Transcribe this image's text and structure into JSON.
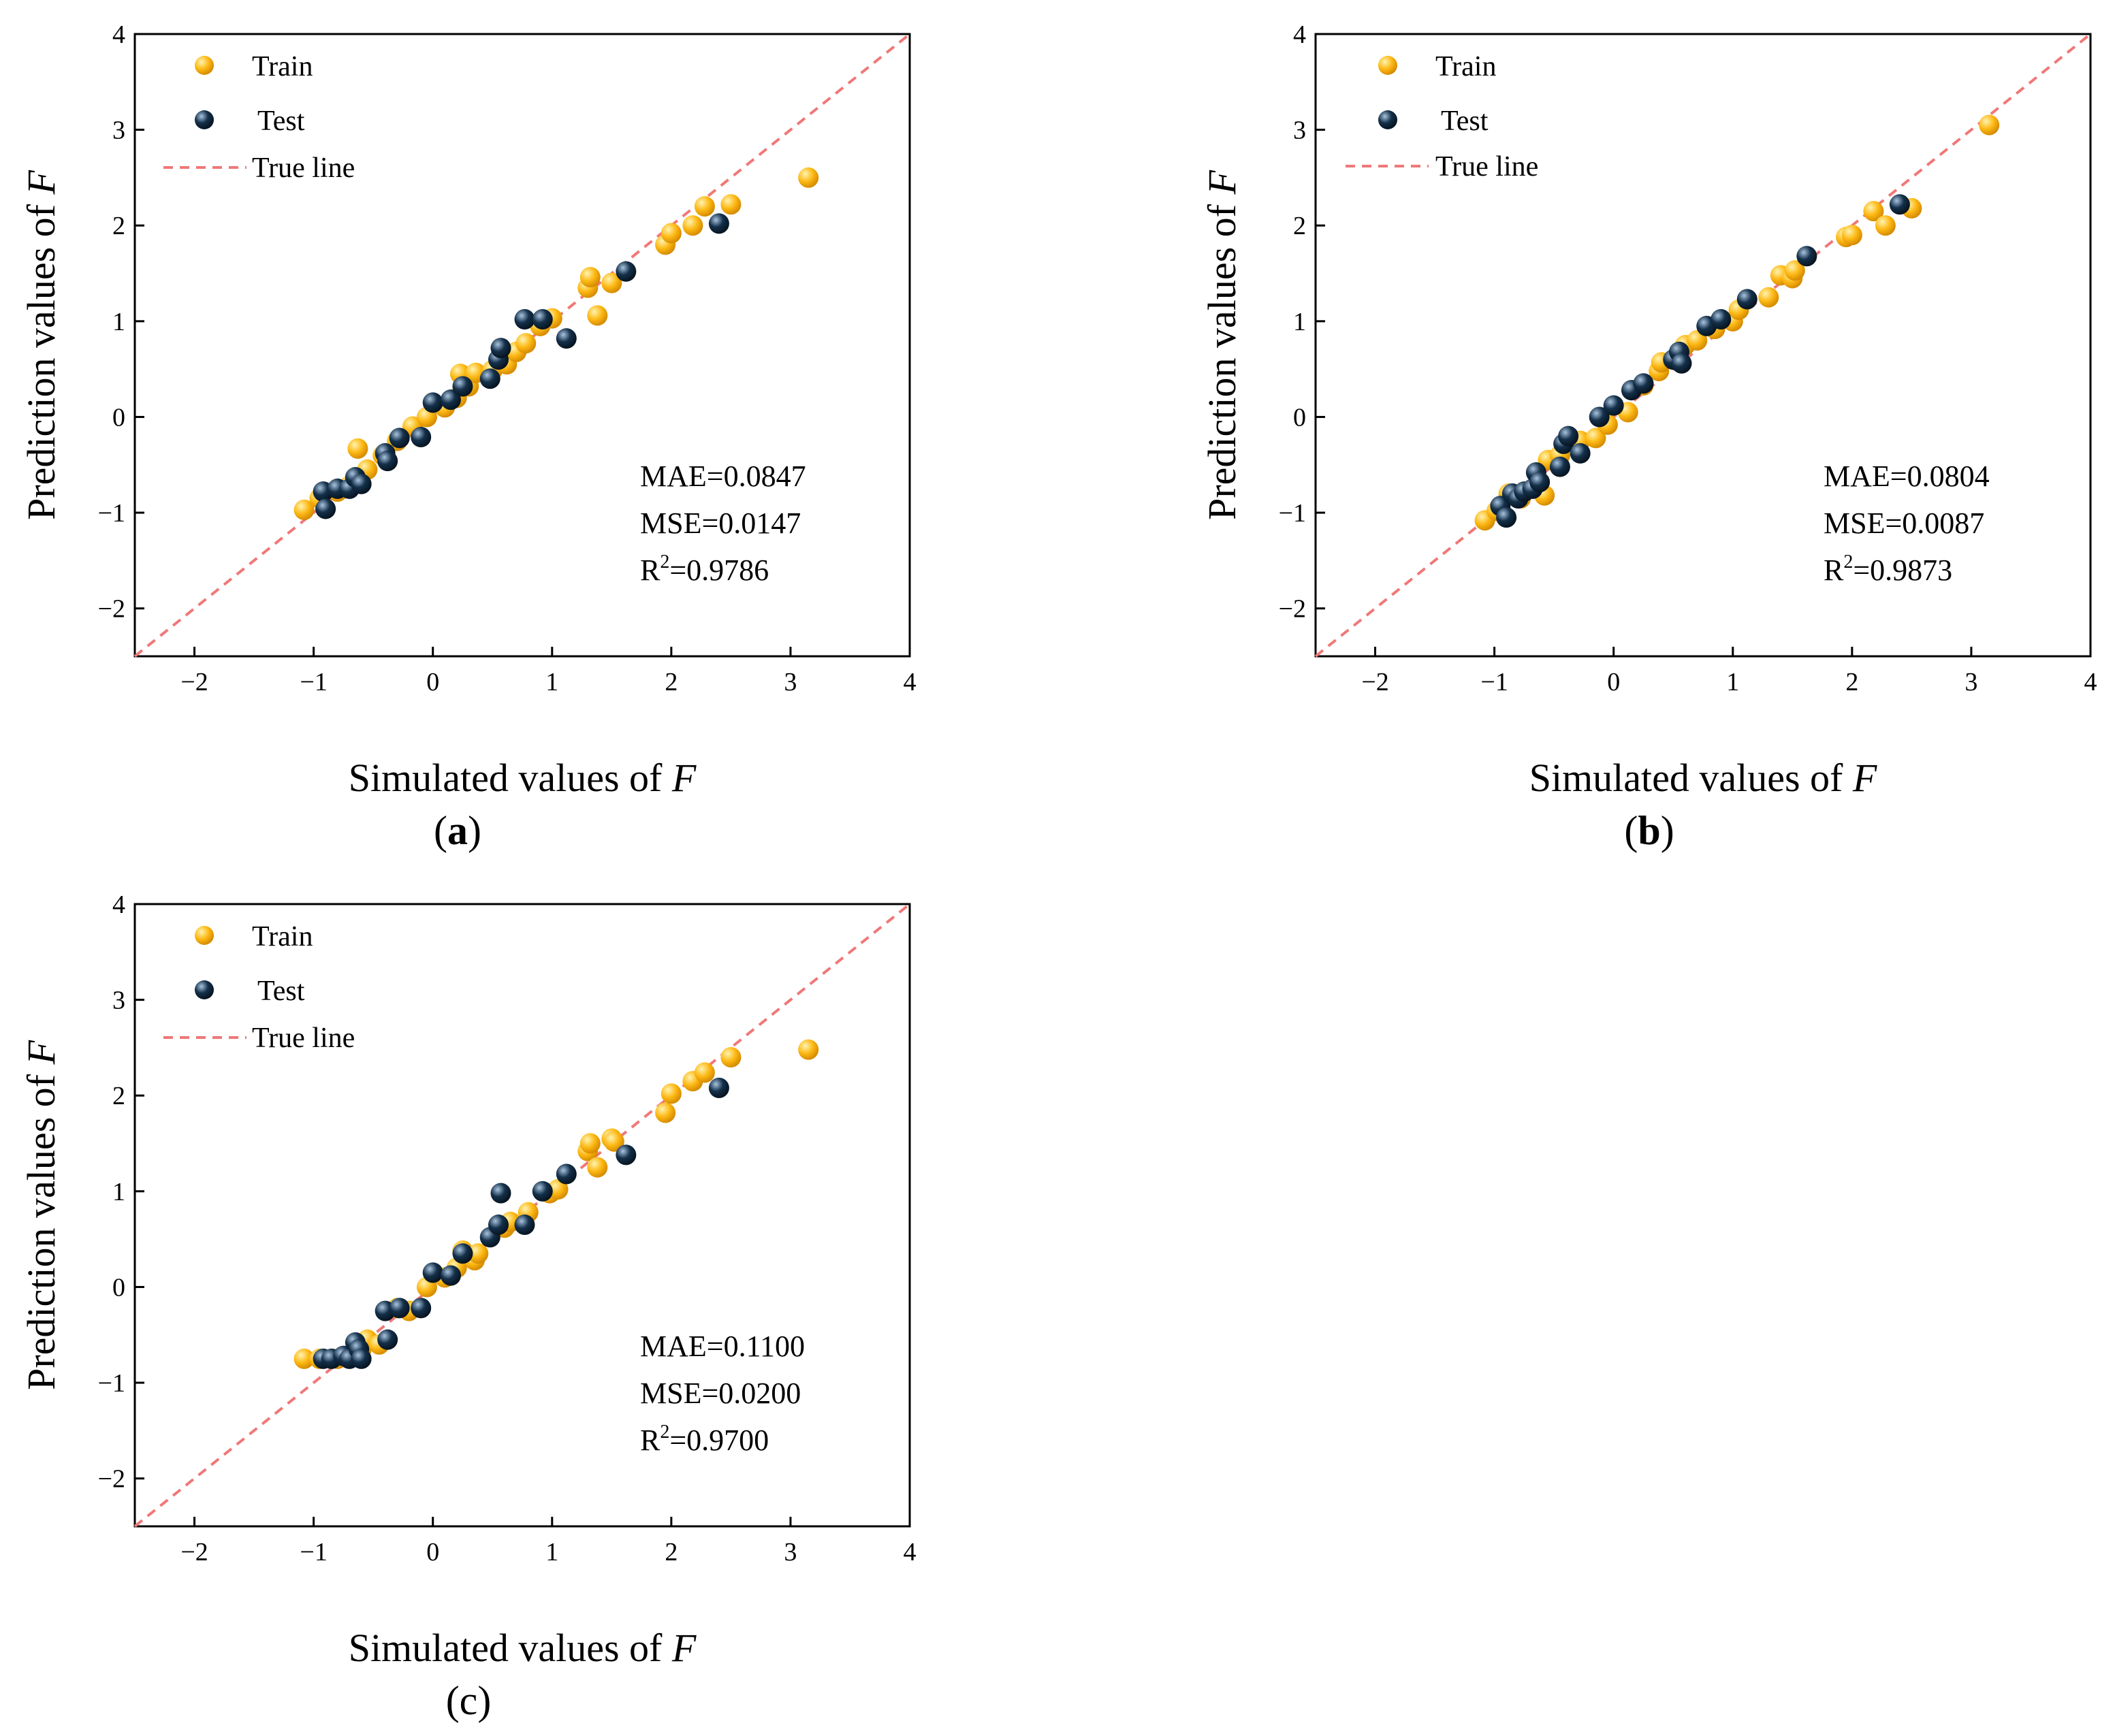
{
  "figure": {
    "colors": {
      "train": "#fdb813",
      "train_highlight": "#fff3b0",
      "test": "#14304a",
      "test_highlight": "#a8c4de",
      "true_line": "#f07878",
      "axis": "#000000"
    }
  },
  "chart_data": [
    {
      "type": "scatter",
      "panel_label": "(a)",
      "panel_letter": "a",
      "xlabel": "Simulated values of ",
      "ylabel": "Prediction values of ",
      "variable": "F",
      "xlim": [
        -2.5,
        4
      ],
      "ylim": [
        -2.5,
        4
      ],
      "xticks": [
        -2,
        -1,
        0,
        1,
        2,
        3,
        4
      ],
      "yticks": [
        -2,
        -1,
        0,
        1,
        2,
        3,
        4
      ],
      "xtick_labels": [
        "−2",
        "−1",
        "0",
        "1",
        "2",
        "3",
        "4"
      ],
      "ytick_labels": [
        "−2",
        "−1",
        "0",
        "1",
        "2",
        "3",
        "4"
      ],
      "legend": {
        "position": "top-left",
        "train": "Train",
        "test": "Test",
        "true_line": "True line"
      },
      "metrics": {
        "mae": "MAE=0.0847",
        "mse": "MSE=0.0147",
        "r2_prefix": "R",
        "r2_sup": "2",
        "r2_value": "=0.9786"
      },
      "series": [
        {
          "name": "Train",
          "points": [
            [
              -1.08,
              -0.97
            ],
            [
              -0.95,
              -0.85
            ],
            [
              -0.8,
              -0.78
            ],
            [
              -0.7,
              -0.72
            ],
            [
              -0.63,
              -0.33
            ],
            [
              -0.55,
              -0.55
            ],
            [
              -0.42,
              -0.4
            ],
            [
              -0.3,
              -0.25
            ],
            [
              -0.17,
              -0.1
            ],
            [
              -0.05,
              0.0
            ],
            [
              0.1,
              0.1
            ],
            [
              0.2,
              0.2
            ],
            [
              0.23,
              0.45
            ],
            [
              0.3,
              0.32
            ],
            [
              0.36,
              0.46
            ],
            [
              0.5,
              0.49
            ],
            [
              0.62,
              0.55
            ],
            [
              0.7,
              0.68
            ],
            [
              0.78,
              0.77
            ],
            [
              0.9,
              0.95
            ],
            [
              1.0,
              1.03
            ],
            [
              1.3,
              1.35
            ],
            [
              1.32,
              1.46
            ],
            [
              1.38,
              1.06
            ],
            [
              1.5,
              1.4
            ],
            [
              1.95,
              1.8
            ],
            [
              2.0,
              1.92
            ],
            [
              2.18,
              2.0
            ],
            [
              2.28,
              2.2
            ],
            [
              2.5,
              2.22
            ],
            [
              3.15,
              2.5
            ]
          ]
        },
        {
          "name": "Test",
          "points": [
            [
              -0.92,
              -0.78
            ],
            [
              -0.9,
              -0.96
            ],
            [
              -0.8,
              -0.75
            ],
            [
              -0.7,
              -0.75
            ],
            [
              -0.65,
              -0.63
            ],
            [
              -0.6,
              -0.7
            ],
            [
              -0.4,
              -0.38
            ],
            [
              -0.38,
              -0.46
            ],
            [
              -0.28,
              -0.22
            ],
            [
              -0.1,
              -0.21
            ],
            [
              0.0,
              0.15
            ],
            [
              0.15,
              0.18
            ],
            [
              0.25,
              0.32
            ],
            [
              0.48,
              0.4
            ],
            [
              0.55,
              0.6
            ],
            [
              0.57,
              0.72
            ],
            [
              0.77,
              1.02
            ],
            [
              0.92,
              1.02
            ],
            [
              1.12,
              0.82
            ],
            [
              1.62,
              1.52
            ],
            [
              2.4,
              2.02
            ]
          ]
        }
      ]
    },
    {
      "type": "scatter",
      "panel_label": "(b)",
      "panel_letter": "b",
      "xlabel": "Simulated values of ",
      "ylabel": "Prediction values of ",
      "variable": "F",
      "xlim": [
        -2.5,
        4
      ],
      "ylim": [
        -2.5,
        4
      ],
      "xticks": [
        -2,
        -1,
        0,
        1,
        2,
        3,
        4
      ],
      "yticks": [
        -2,
        -1,
        0,
        1,
        2,
        3,
        4
      ],
      "xtick_labels": [
        "−2",
        "−1",
        "0",
        "1",
        "2",
        "3",
        "4"
      ],
      "ytick_labels": [
        "−2",
        "−1",
        "0",
        "1",
        "2",
        "3",
        "4"
      ],
      "legend": {
        "position": "top-left",
        "train": "Train",
        "test": "Test",
        "true_line": "True line"
      },
      "metrics": {
        "mae": "MAE=0.0804",
        "mse": "MSE=0.0087",
        "r2_prefix": "R",
        "r2_sup": "2",
        "r2_value": "=0.9873"
      },
      "series": [
        {
          "name": "Train",
          "points": [
            [
              -1.08,
              -1.08
            ],
            [
              -0.98,
              -0.98
            ],
            [
              -0.88,
              -0.8
            ],
            [
              -0.78,
              -0.85
            ],
            [
              -0.65,
              -0.75
            ],
            [
              -0.58,
              -0.82
            ],
            [
              -0.55,
              -0.45
            ],
            [
              -0.45,
              -0.4
            ],
            [
              -0.28,
              -0.25
            ],
            [
              -0.15,
              -0.22
            ],
            [
              -0.05,
              -0.08
            ],
            [
              0.12,
              0.05
            ],
            [
              0.25,
              0.33
            ],
            [
              0.38,
              0.48
            ],
            [
              0.4,
              0.57
            ],
            [
              0.6,
              0.75
            ],
            [
              0.7,
              0.8
            ],
            [
              0.85,
              0.92
            ],
            [
              1.0,
              1.0
            ],
            [
              1.05,
              1.12
            ],
            [
              1.3,
              1.25
            ],
            [
              1.4,
              1.48
            ],
            [
              1.5,
              1.45
            ],
            [
              1.52,
              1.53
            ],
            [
              1.95,
              1.88
            ],
            [
              2.0,
              1.9
            ],
            [
              2.18,
              2.15
            ],
            [
              2.28,
              2.0
            ],
            [
              2.5,
              2.18
            ],
            [
              3.15,
              3.05
            ]
          ]
        },
        {
          "name": "Test",
          "points": [
            [
              -0.95,
              -0.93
            ],
            [
              -0.9,
              -1.05
            ],
            [
              -0.85,
              -0.8
            ],
            [
              -0.8,
              -0.85
            ],
            [
              -0.75,
              -0.78
            ],
            [
              -0.68,
              -0.75
            ],
            [
              -0.65,
              -0.58
            ],
            [
              -0.62,
              -0.68
            ],
            [
              -0.45,
              -0.52
            ],
            [
              -0.42,
              -0.28
            ],
            [
              -0.38,
              -0.2
            ],
            [
              -0.28,
              -0.38
            ],
            [
              -0.12,
              0.0
            ],
            [
              0.0,
              0.12
            ],
            [
              0.15,
              0.28
            ],
            [
              0.25,
              0.35
            ],
            [
              0.5,
              0.6
            ],
            [
              0.55,
              0.68
            ],
            [
              0.57,
              0.56
            ],
            [
              0.78,
              0.95
            ],
            [
              0.9,
              1.02
            ],
            [
              1.12,
              1.23
            ],
            [
              1.62,
              1.68
            ],
            [
              2.4,
              2.22
            ]
          ]
        }
      ]
    },
    {
      "type": "scatter",
      "panel_label": "(c)",
      "panel_letter": "c",
      "xlabel": "Simulated values of ",
      "ylabel": "Prediction values of ",
      "variable": "F",
      "xlim": [
        -2.5,
        4
      ],
      "ylim": [
        -2.5,
        4
      ],
      "xticks": [
        -2,
        -1,
        0,
        1,
        2,
        3,
        4
      ],
      "yticks": [
        -2,
        -1,
        0,
        1,
        2,
        3,
        4
      ],
      "xtick_labels": [
        "−2",
        "−1",
        "0",
        "1",
        "2",
        "3",
        "4"
      ],
      "ytick_labels": [
        "−2",
        "−1",
        "0",
        "1",
        "2",
        "3",
        "4"
      ],
      "legend": {
        "position": "top-left",
        "train": "Train",
        "test": "Test",
        "true_line": "True line"
      },
      "metrics": {
        "mae": "MAE=0.1100",
        "mse": "MSE=0.0200",
        "r2_prefix": "R",
        "r2_sup": "2",
        "r2_value": "=0.9700"
      },
      "series": [
        {
          "name": "Train",
          "points": [
            [
              -1.08,
              -0.75
            ],
            [
              -0.95,
              -0.75
            ],
            [
              -0.8,
              -0.75
            ],
            [
              -0.7,
              -0.72
            ],
            [
              -0.6,
              -0.65
            ],
            [
              -0.55,
              -0.55
            ],
            [
              -0.45,
              -0.6
            ],
            [
              -0.3,
              -0.22
            ],
            [
              -0.2,
              -0.25
            ],
            [
              -0.05,
              0.0
            ],
            [
              0.1,
              0.1
            ],
            [
              0.2,
              0.2
            ],
            [
              0.25,
              0.38
            ],
            [
              0.35,
              0.28
            ],
            [
              0.38,
              0.35
            ],
            [
              0.6,
              0.62
            ],
            [
              0.65,
              0.68
            ],
            [
              0.8,
              0.78
            ],
            [
              0.98,
              0.98
            ],
            [
              1.05,
              1.02
            ],
            [
              1.3,
              1.42
            ],
            [
              1.32,
              1.5
            ],
            [
              1.38,
              1.25
            ],
            [
              1.5,
              1.55
            ],
            [
              1.52,
              1.52
            ],
            [
              1.95,
              1.82
            ],
            [
              2.0,
              2.02
            ],
            [
              2.18,
              2.15
            ],
            [
              2.28,
              2.24
            ],
            [
              2.5,
              2.4
            ],
            [
              3.15,
              2.48
            ]
          ]
        },
        {
          "name": "Test",
          "points": [
            [
              -0.92,
              -0.75
            ],
            [
              -0.85,
              -0.75
            ],
            [
              -0.75,
              -0.72
            ],
            [
              -0.7,
              -0.75
            ],
            [
              -0.65,
              -0.58
            ],
            [
              -0.62,
              -0.65
            ],
            [
              -0.6,
              -0.75
            ],
            [
              -0.4,
              -0.25
            ],
            [
              -0.38,
              -0.55
            ],
            [
              -0.28,
              -0.22
            ],
            [
              -0.1,
              -0.22
            ],
            [
              0.0,
              0.15
            ],
            [
              0.15,
              0.12
            ],
            [
              0.25,
              0.35
            ],
            [
              0.48,
              0.52
            ],
            [
              0.55,
              0.65
            ],
            [
              0.57,
              0.98
            ],
            [
              0.77,
              0.65
            ],
            [
              0.92,
              1.0
            ],
            [
              1.12,
              1.18
            ],
            [
              1.62,
              1.38
            ],
            [
              2.4,
              2.08
            ]
          ]
        }
      ]
    }
  ]
}
